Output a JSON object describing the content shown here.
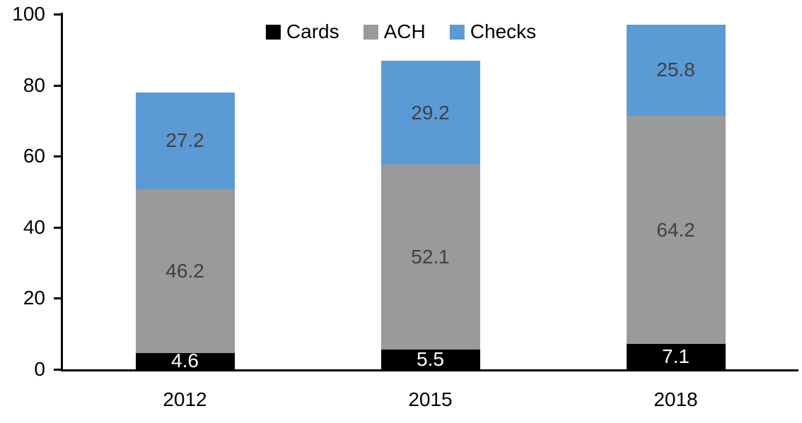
{
  "chart_data": {
    "type": "bar",
    "stacked": true,
    "title": "",
    "categories": [
      "2012",
      "2015",
      "2018"
    ],
    "series": [
      {
        "name": "Cards",
        "color": "#000000",
        "label_color": "#FFFFFF",
        "values": [
          4.6,
          5.5,
          7.1
        ]
      },
      {
        "name": "ACH",
        "color": "#9A9A9A",
        "label_color": "#404040",
        "values": [
          46.2,
          52.1,
          64.2
        ]
      },
      {
        "name": "Checks",
        "color": "#5B9BD5",
        "label_color": "#404040",
        "values": [
          27.2,
          29.2,
          25.8
        ]
      }
    ],
    "xlabel": "",
    "ylabel": "",
    "ylim": [
      0,
      100
    ],
    "yticks": [
      0,
      20,
      40,
      60,
      80,
      100
    ],
    "grid": false,
    "legend_position": "top-center",
    "axis_color": "#000000",
    "background_color": "#FFFFFF"
  }
}
